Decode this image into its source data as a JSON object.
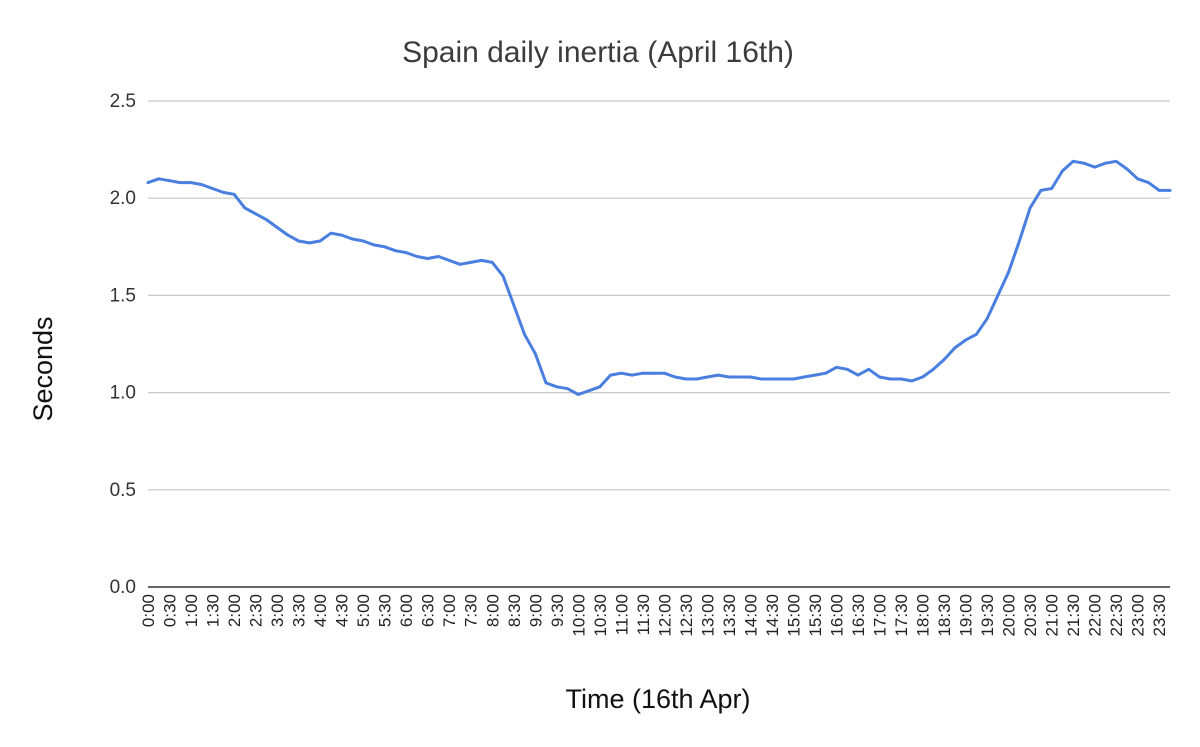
{
  "chart_data": {
    "type": "line",
    "title": "Spain daily inertia (April 16th)",
    "xlabel": "Time (16th Apr)",
    "ylabel": "Seconds",
    "ylim": [
      0,
      2.5
    ],
    "yticks": [
      "0.0",
      "0.5",
      "1.0",
      "1.5",
      "2.0",
      "2.5"
    ],
    "grid": true,
    "legend": "none",
    "series_color": "#4a7fe0",
    "categories": [
      "0:00",
      "0:30",
      "1:00",
      "1:30",
      "2:00",
      "2:30",
      "3:00",
      "3:30",
      "4:00",
      "4:30",
      "5:00",
      "5:30",
      "6:00",
      "6:30",
      "7:00",
      "7:30",
      "8:00",
      "8:30",
      "9:00",
      "9:30",
      "10:00",
      "10:30",
      "11:00",
      "11:30",
      "12:00",
      "12:30",
      "13:00",
      "13:30",
      "14:00",
      "14:30",
      "15:00",
      "15:30",
      "16:00",
      "16:30",
      "17:00",
      "17:30",
      "18:00",
      "18:30",
      "19:00",
      "19:30",
      "20:00",
      "20:30",
      "21:00",
      "21:30",
      "22:00",
      "22:30",
      "23:00",
      "23:30"
    ],
    "series": [
      {
        "x": [
          "0:00",
          "0:15",
          "0:30",
          "0:45",
          "1:00",
          "1:15",
          "1:30",
          "1:45",
          "2:00",
          "2:15",
          "2:30",
          "2:45",
          "3:00",
          "3:15",
          "3:30",
          "3:45",
          "4:00",
          "4:15",
          "4:30",
          "4:45",
          "5:00",
          "5:15",
          "5:30",
          "5:45",
          "6:00",
          "6:15",
          "6:30",
          "6:45",
          "7:00",
          "7:15",
          "7:30",
          "7:45",
          "8:00",
          "8:15",
          "8:30",
          "8:45",
          "9:00",
          "9:15",
          "9:30",
          "9:45",
          "10:00",
          "10:15",
          "10:30",
          "10:45",
          "11:00",
          "11:15",
          "11:30",
          "11:45",
          "12:00",
          "12:15",
          "12:30",
          "12:45",
          "13:00",
          "13:15",
          "13:30",
          "13:45",
          "14:00",
          "14:15",
          "14:30",
          "14:45",
          "15:00",
          "15:15",
          "15:30",
          "15:45",
          "16:00",
          "16:15",
          "16:30",
          "16:45",
          "17:00",
          "17:15",
          "17:30",
          "17:45",
          "18:00",
          "18:15",
          "18:30",
          "18:45",
          "19:00",
          "19:15",
          "19:30",
          "19:45",
          "20:00",
          "20:15",
          "20:30",
          "20:45",
          "21:00",
          "21:15",
          "21:30",
          "21:45",
          "22:00",
          "22:15",
          "22:30",
          "22:45",
          "23:00",
          "23:15",
          "23:30",
          "23:45"
        ],
        "values": [
          2.08,
          2.1,
          2.09,
          2.08,
          2.08,
          2.07,
          2.05,
          2.03,
          2.02,
          1.95,
          1.92,
          1.89,
          1.85,
          1.81,
          1.78,
          1.77,
          1.78,
          1.82,
          1.81,
          1.79,
          1.78,
          1.76,
          1.75,
          1.73,
          1.72,
          1.7,
          1.69,
          1.7,
          1.68,
          1.66,
          1.67,
          1.68,
          1.67,
          1.6,
          1.45,
          1.3,
          1.2,
          1.05,
          1.03,
          1.02,
          0.99,
          1.01,
          1.03,
          1.09,
          1.1,
          1.09,
          1.1,
          1.1,
          1.1,
          1.08,
          1.07,
          1.07,
          1.08,
          1.09,
          1.08,
          1.08,
          1.08,
          1.07,
          1.07,
          1.07,
          1.07,
          1.08,
          1.09,
          1.1,
          1.13,
          1.12,
          1.09,
          1.12,
          1.08,
          1.07,
          1.07,
          1.06,
          1.08,
          1.12,
          1.17,
          1.23,
          1.27,
          1.3,
          1.38,
          1.5,
          1.62,
          1.78,
          1.95,
          2.04,
          2.05,
          2.14,
          2.19,
          2.18,
          2.16,
          2.18,
          2.19,
          2.15,
          2.1,
          2.08,
          2.04,
          2.04
        ]
      }
    ]
  }
}
